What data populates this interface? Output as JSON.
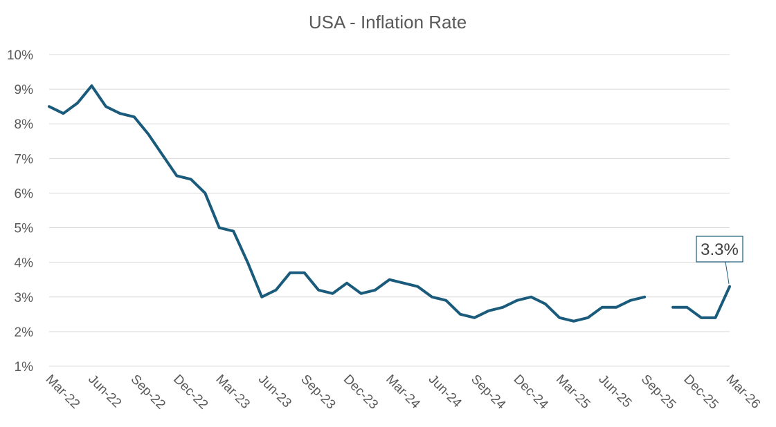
{
  "chart_data": {
    "type": "line",
    "title": "USA - Inflation Rate",
    "xlabel": "",
    "ylabel": "",
    "ylim": [
      1,
      10
    ],
    "y_ticks": [
      "1%",
      "2%",
      "3%",
      "4%",
      "5%",
      "6%",
      "7%",
      "8%",
      "9%",
      "10%"
    ],
    "grid": true,
    "x_tick_labels": [
      "Mar-22",
      "Jun-22",
      "Sep-22",
      "Dec-22",
      "Mar-23",
      "Jun-23",
      "Sep-23",
      "Dec-23",
      "Mar-24",
      "Jun-24",
      "Sep-24",
      "Dec-24",
      "Mar-25",
      "Jun-25",
      "Sep-25",
      "Dec-25",
      "Mar-26"
    ],
    "series": [
      {
        "name": "USA - Inflation Rate",
        "color": "#1a5a7a",
        "values": [
          8.5,
          8.3,
          8.6,
          9.1,
          8.5,
          8.3,
          8.2,
          7.7,
          7.1,
          6.5,
          6.4,
          6.0,
          5.0,
          4.9,
          4.0,
          3.0,
          3.2,
          3.7,
          3.7,
          3.2,
          3.1,
          3.4,
          3.1,
          3.2,
          3.5,
          3.4,
          3.3,
          3.0,
          2.9,
          2.5,
          2.4,
          2.6,
          2.7,
          2.9,
          3.0,
          2.8,
          2.4,
          2.3,
          2.4,
          2.7,
          2.7,
          2.9,
          3.0,
          null,
          2.7,
          2.7,
          2.4,
          2.4,
          3.3
        ]
      }
    ],
    "annotations": [
      {
        "label": "3.3%",
        "point_index": 48
      }
    ]
  }
}
